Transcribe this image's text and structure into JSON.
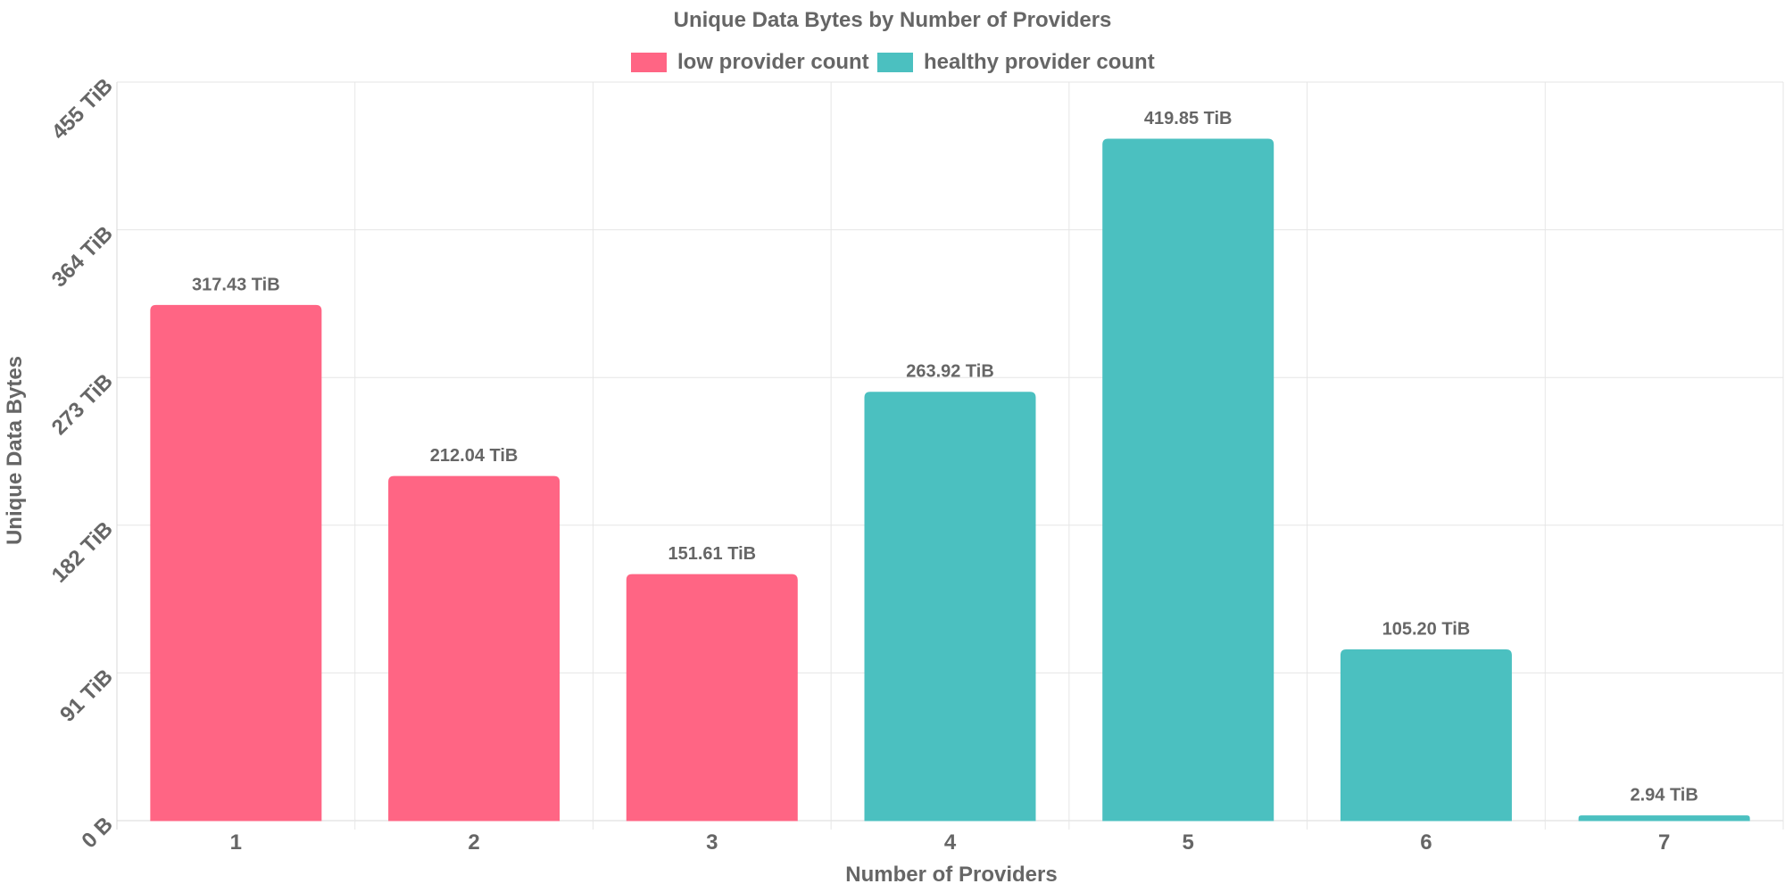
{
  "chart_data": {
    "type": "bar",
    "title": "Unique Data Bytes by Number of Providers",
    "xlabel": "Number of Providers",
    "ylabel": "Unique Data Bytes",
    "categories": [
      "1",
      "2",
      "3",
      "4",
      "5",
      "6",
      "7"
    ],
    "values": [
      317.43,
      212.04,
      151.61,
      263.92,
      419.85,
      105.2,
      2.94
    ],
    "value_labels": [
      "317.43 TiB",
      "212.04 TiB",
      "151.61 TiB",
      "263.92 TiB",
      "419.85 TiB",
      "105.20 TiB",
      "2.94 TiB"
    ],
    "series_membership": [
      0,
      0,
      0,
      1,
      1,
      1,
      1
    ],
    "series": [
      {
        "name": "low provider count",
        "color": "#ff6584"
      },
      {
        "name": "healthy provider count",
        "color": "#4bc0c0"
      }
    ],
    "ylim": [
      0,
      455
    ],
    "yticks": [
      0,
      91,
      182,
      273,
      364,
      455
    ],
    "ytick_labels": [
      "0 B",
      "91 TiB",
      "182 TiB",
      "273 TiB",
      "364 TiB",
      "455 TiB"
    ],
    "grid": true,
    "legend_position": "top"
  }
}
